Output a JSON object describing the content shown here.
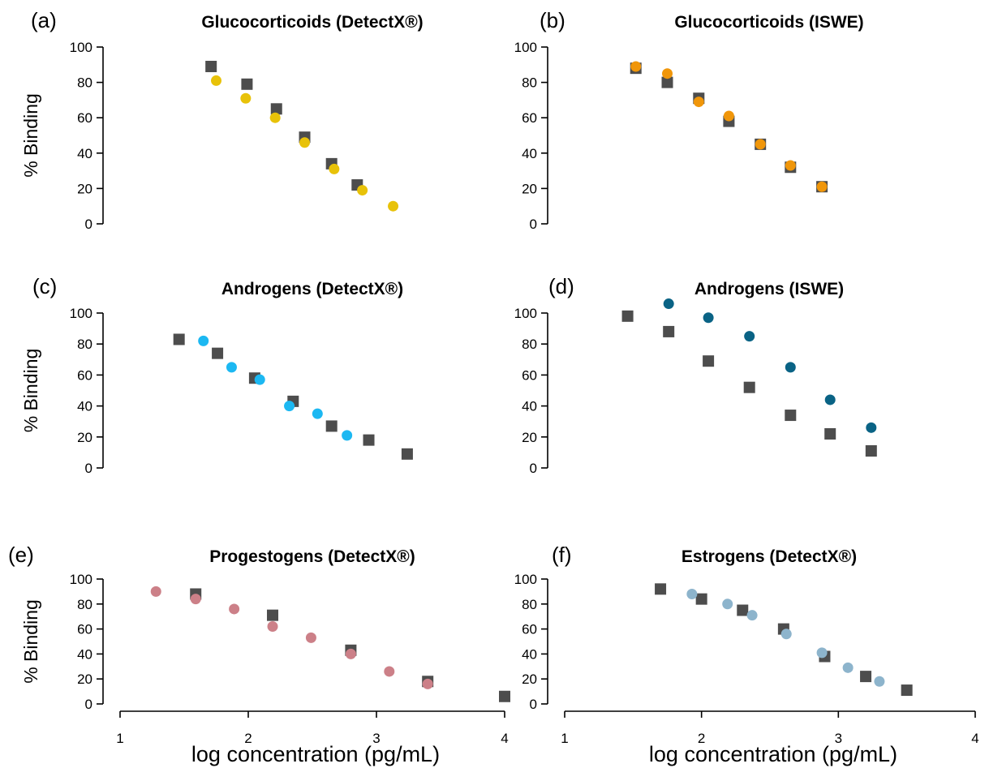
{
  "chart_data": [
    {
      "type": "scatter",
      "letter": "(a)",
      "title": "Glucocorticoids (DetectX®)",
      "ylabel": "% Binding",
      "xlabel": "",
      "xlim": [
        1,
        4
      ],
      "ylim": [
        0,
        100
      ],
      "yticks": [
        "0",
        "20",
        "40",
        "60",
        "80",
        "100"
      ],
      "xticks": [],
      "series": [
        {
          "marker": "square",
          "color": "#4d4d4d",
          "x": [
            1.71,
            1.99,
            2.22,
            2.44,
            2.65,
            2.85
          ],
          "y": [
            89,
            79,
            65,
            49,
            34,
            22
          ]
        },
        {
          "marker": "circle",
          "color": "#e8c209",
          "x": [
            1.75,
            1.98,
            2.21,
            2.44,
            2.67,
            2.89,
            3.13
          ],
          "y": [
            81,
            71,
            60,
            46,
            31,
            19,
            10
          ]
        }
      ]
    },
    {
      "type": "scatter",
      "letter": "(b)",
      "title": "Glucocorticoids (ISWE)",
      "ylabel": "",
      "xlabel": "",
      "xlim": [
        1,
        4
      ],
      "ylim": [
        0,
        100
      ],
      "yticks": [
        "0",
        "20",
        "40",
        "60",
        "80",
        "100"
      ],
      "xticks": [],
      "series": [
        {
          "marker": "square",
          "color": "#4d4d4d",
          "x": [
            1.52,
            1.75,
            1.98,
            2.2,
            2.43,
            2.65,
            2.88
          ],
          "y": [
            88,
            80,
            71,
            58,
            45,
            32,
            21
          ]
        },
        {
          "marker": "circle",
          "color": "#f0960a",
          "x": [
            1.52,
            1.75,
            1.98,
            2.2,
            2.43,
            2.65,
            2.88
          ],
          "y": [
            89,
            85,
            69,
            61,
            45,
            33,
            21
          ]
        }
      ]
    },
    {
      "type": "scatter",
      "letter": "(c)",
      "title": "Androgens (DetectX®)",
      "ylabel": "% Binding",
      "xlabel": "",
      "xlim": [
        1,
        4
      ],
      "ylim": [
        0,
        100
      ],
      "yticks": [
        "0",
        "20",
        "40",
        "60",
        "80",
        "100"
      ],
      "xticks": [],
      "series": [
        {
          "marker": "square",
          "color": "#4d4d4d",
          "x": [
            1.46,
            1.76,
            2.05,
            2.35,
            2.65,
            2.94,
            3.24
          ],
          "y": [
            83,
            74,
            58,
            43,
            27,
            18,
            9
          ]
        },
        {
          "marker": "circle",
          "color": "#1cb8f2",
          "x": [
            1.65,
            1.87,
            2.09,
            2.32,
            2.54,
            2.77
          ],
          "y": [
            82,
            65,
            57,
            40,
            35,
            21
          ]
        }
      ]
    },
    {
      "type": "scatter",
      "letter": "(d)",
      "title": "Androgens (ISWE)",
      "ylabel": "",
      "xlabel": "",
      "xlim": [
        1,
        4
      ],
      "ylim": [
        0,
        100
      ],
      "yticks": [
        "0",
        "20",
        "40",
        "60",
        "80",
        "100"
      ],
      "xticks": [],
      "series": [
        {
          "marker": "square",
          "color": "#4d4d4d",
          "x": [
            1.46,
            1.76,
            2.05,
            2.35,
            2.65,
            2.94,
            3.24
          ],
          "y": [
            98,
            88,
            69,
            52,
            34,
            22,
            11
          ]
        },
        {
          "marker": "circle",
          "color": "#0a6385",
          "x": [
            1.76,
            2.05,
            2.35,
            2.65,
            2.94,
            3.24
          ],
          "y": [
            106,
            97,
            85,
            65,
            44,
            26
          ]
        }
      ]
    },
    {
      "type": "scatter",
      "letter": "(e)",
      "title": "Progestogens (DetectX®)",
      "ylabel": "% Binding",
      "xlabel": "log concentration (pg/mL)",
      "xlim": [
        1,
        4
      ],
      "ylim": [
        0,
        100
      ],
      "yticks": [
        "0",
        "20",
        "40",
        "60",
        "80",
        "100"
      ],
      "xticks": [
        "1",
        "2",
        "3",
        "4"
      ],
      "series": [
        {
          "marker": "square",
          "color": "#4d4d4d",
          "x": [
            1.59,
            2.19,
            2.8,
            3.4,
            4.0
          ],
          "y": [
            88,
            71,
            43,
            18,
            6
          ]
        },
        {
          "marker": "circle",
          "color": "#cc8088",
          "x": [
            1.28,
            1.59,
            1.89,
            2.19,
            2.49,
            2.8,
            3.1,
            3.4
          ],
          "y": [
            90,
            84,
            76,
            62,
            53,
            40,
            26,
            16
          ]
        }
      ]
    },
    {
      "type": "scatter",
      "letter": "(f)",
      "title": "Estrogens (DetectX®)",
      "ylabel": "",
      "xlabel": "log concentration (pg/mL)",
      "xlim": [
        1,
        4
      ],
      "ylim": [
        0,
        100
      ],
      "yticks": [
        "0",
        "20",
        "40",
        "60",
        "80",
        "100"
      ],
      "xticks": [
        "1",
        "2",
        "3",
        "4"
      ],
      "series": [
        {
          "marker": "square",
          "color": "#4d4d4d",
          "x": [
            1.7,
            2.0,
            2.3,
            2.6,
            2.9,
            3.2,
            3.5
          ],
          "y": [
            92,
            84,
            75,
            60,
            38,
            22,
            11
          ]
        },
        {
          "marker": "circle",
          "color": "#8db4cc",
          "x": [
            1.93,
            2.19,
            2.37,
            2.62,
            2.88,
            3.07,
            3.3
          ],
          "y": [
            88,
            80,
            71,
            56,
            41,
            29,
            18
          ]
        }
      ]
    }
  ]
}
